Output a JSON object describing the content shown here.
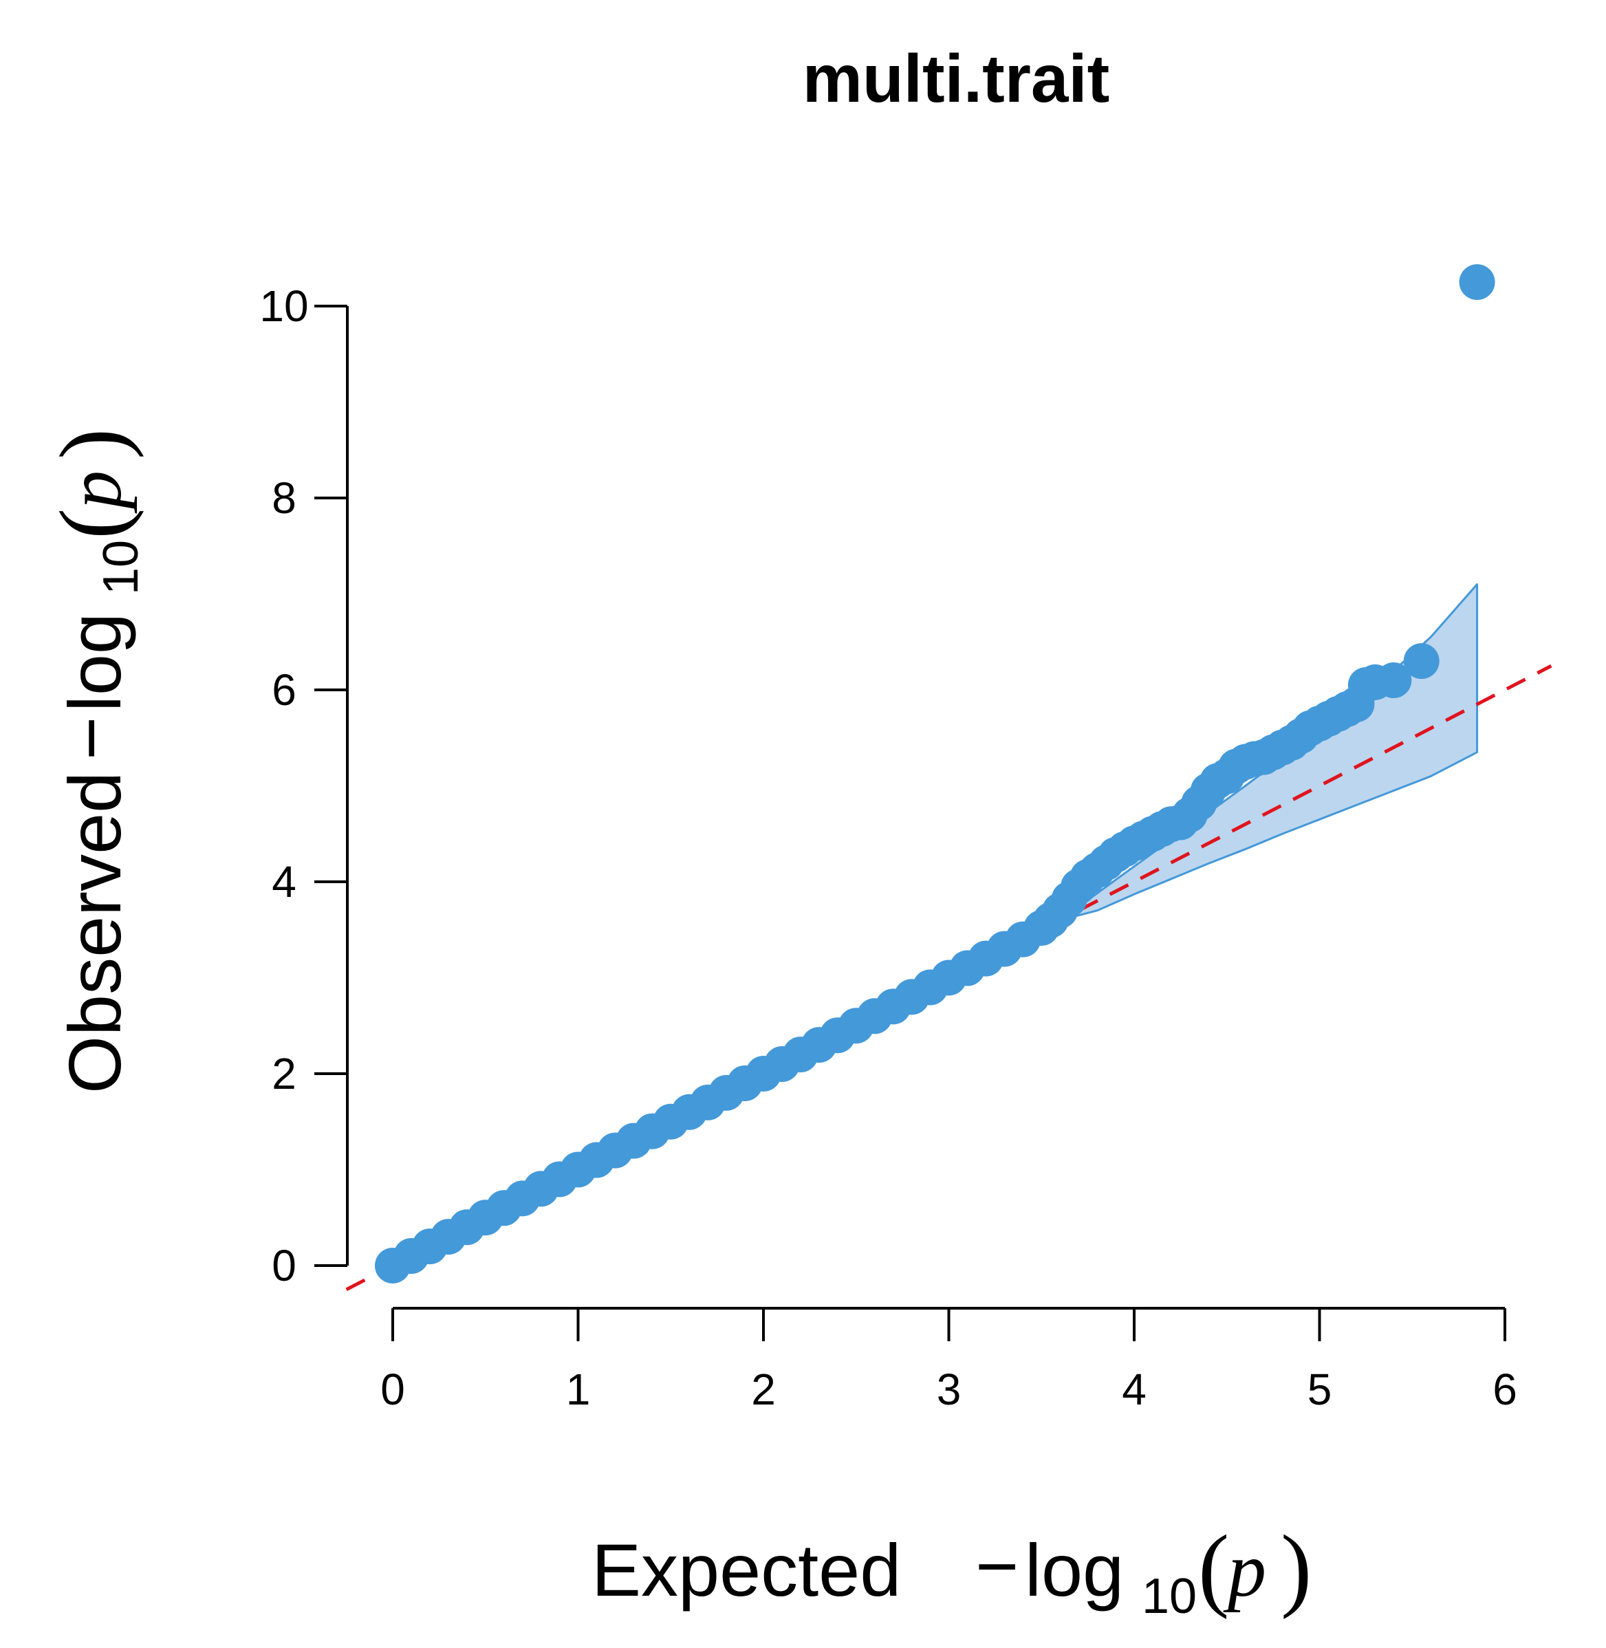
{
  "chart_data": {
    "type": "scatter",
    "title": "multi.trait",
    "xlabel": {
      "prefix": "Expected",
      "minus": "−",
      "fn": "log",
      "sub": "10",
      "open": "(",
      "var": "p",
      "close": ")"
    },
    "ylabel": {
      "prefix": "Observed",
      "minus": "−",
      "fn": "log",
      "sub": "10",
      "open": "(",
      "var": "p",
      "close": ")"
    },
    "xlim": [
      0,
      6
    ],
    "ylim": [
      0,
      10
    ],
    "x_ticks": [
      0,
      1,
      2,
      3,
      4,
      5,
      6
    ],
    "x_tick_labels": [
      "0",
      "1",
      "2",
      "3",
      "4",
      "5",
      "6"
    ],
    "y_ticks": [
      0,
      2,
      4,
      6,
      8,
      10
    ],
    "y_tick_labels": [
      "0",
      "2",
      "4",
      "6",
      "8",
      "10"
    ],
    "grid": false,
    "point_color": "#4499D9",
    "band_fill": "#BCD6EF",
    "band_stroke": "#4499D9",
    "reference_line_color": "#E0141E",
    "reference_line": {
      "style": "dashed",
      "slope": 1,
      "intercept": 0
    },
    "confidence_band": {
      "x": [
        3.6,
        3.8,
        4.0,
        4.2,
        4.4,
        4.6,
        4.8,
        5.0,
        5.2,
        5.4,
        5.6,
        5.85
      ],
      "lower": [
        3.6,
        3.7,
        3.87,
        4.03,
        4.19,
        4.34,
        4.5,
        4.65,
        4.8,
        4.95,
        5.1,
        5.35
      ],
      "upper": [
        3.6,
        3.88,
        4.16,
        4.44,
        4.72,
        5.0,
        5.29,
        5.58,
        5.87,
        6.2,
        6.55,
        7.1
      ]
    },
    "series": [
      {
        "x": [
          0,
          0.1,
          0.2,
          0.3,
          0.4,
          0.5,
          0.6,
          0.7,
          0.8,
          0.9,
          1.0,
          1.1,
          1.2,
          1.3,
          1.4,
          1.5,
          1.6,
          1.7,
          1.8,
          1.9,
          2.0,
          2.1,
          2.2,
          2.3,
          2.4,
          2.5,
          2.6,
          2.7,
          2.8,
          2.9,
          3.0,
          3.1,
          3.2,
          3.3,
          3.4,
          3.5,
          3.55,
          3.6,
          3.65,
          3.7,
          3.75,
          3.8,
          3.85,
          3.9,
          3.95,
          4.0,
          4.05,
          4.1,
          4.15,
          4.2,
          4.25,
          4.3,
          4.35,
          4.4,
          4.45,
          4.5,
          4.55,
          4.6,
          4.65,
          4.7,
          4.75,
          4.8,
          4.85,
          4.9,
          4.95,
          5.0,
          5.05,
          5.1,
          5.15,
          5.2,
          5.25,
          5.3,
          5.4,
          5.55,
          5.85
        ],
        "y": [
          0,
          0.1,
          0.2,
          0.3,
          0.4,
          0.5,
          0.6,
          0.7,
          0.8,
          0.9,
          1.0,
          1.1,
          1.2,
          1.3,
          1.4,
          1.5,
          1.6,
          1.7,
          1.8,
          1.9,
          2.0,
          2.1,
          2.2,
          2.3,
          2.4,
          2.5,
          2.6,
          2.7,
          2.8,
          2.9,
          3.0,
          3.1,
          3.2,
          3.3,
          3.4,
          3.52,
          3.6,
          3.7,
          3.82,
          3.95,
          4.05,
          4.12,
          4.2,
          4.28,
          4.34,
          4.4,
          4.45,
          4.5,
          4.55,
          4.6,
          4.62,
          4.7,
          4.82,
          4.95,
          5.05,
          5.1,
          5.2,
          5.25,
          5.28,
          5.3,
          5.35,
          5.4,
          5.45,
          5.52,
          5.6,
          5.65,
          5.7,
          5.75,
          5.8,
          5.85,
          6.05,
          6.08,
          6.1,
          6.3,
          10.25
        ]
      }
    ]
  }
}
